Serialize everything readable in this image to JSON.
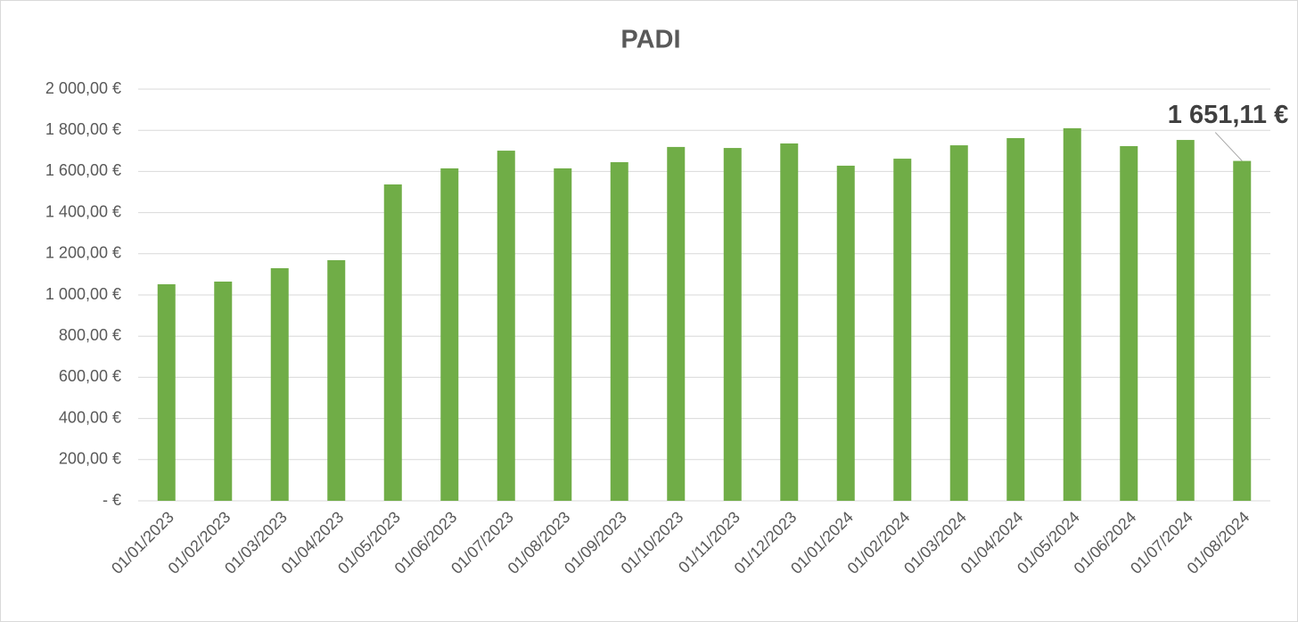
{
  "chart_data": {
    "type": "bar",
    "title": "PADI",
    "categories": [
      "01/01/2023",
      "01/02/2023",
      "01/03/2023",
      "01/04/2023",
      "01/05/2023",
      "01/06/2023",
      "01/07/2023",
      "01/08/2023",
      "01/09/2023",
      "01/10/2023",
      "01/11/2023",
      "01/12/2023",
      "01/01/2024",
      "01/02/2024",
      "01/03/2024",
      "01/04/2024",
      "01/05/2024",
      "01/06/2024",
      "01/07/2024",
      "01/08/2024"
    ],
    "values": [
      1052,
      1065,
      1130,
      1169,
      1537,
      1615,
      1701,
      1615,
      1645,
      1719,
      1714,
      1736,
      1628,
      1662,
      1727,
      1762,
      1810,
      1723,
      1753,
      1651.11
    ],
    "value_labels": [
      null,
      null,
      null,
      null,
      null,
      null,
      null,
      null,
      null,
      null,
      null,
      null,
      null,
      null,
      null,
      null,
      null,
      null,
      null,
      "1 651,11 €"
    ],
    "color": "#70ad47",
    "ylim": [
      0,
      2000
    ],
    "yticks": [
      {
        "value": 0,
        "label": "-  €"
      },
      {
        "value": 200,
        "label": "200,00 €"
      },
      {
        "value": 400,
        "label": "400,00 €"
      },
      {
        "value": 600,
        "label": "600,00 €"
      },
      {
        "value": 800,
        "label": "800,00 €"
      },
      {
        "value": 1000,
        "label": "1 000,00 €"
      },
      {
        "value": 1200,
        "label": "1 200,00 €"
      },
      {
        "value": 1400,
        "label": "1 400,00 €"
      },
      {
        "value": 1600,
        "label": "1 600,00 €"
      },
      {
        "value": 1800,
        "label": "1 800,00 €"
      },
      {
        "value": 2000,
        "label": "2 000,00 €"
      }
    ],
    "grid": true
  }
}
